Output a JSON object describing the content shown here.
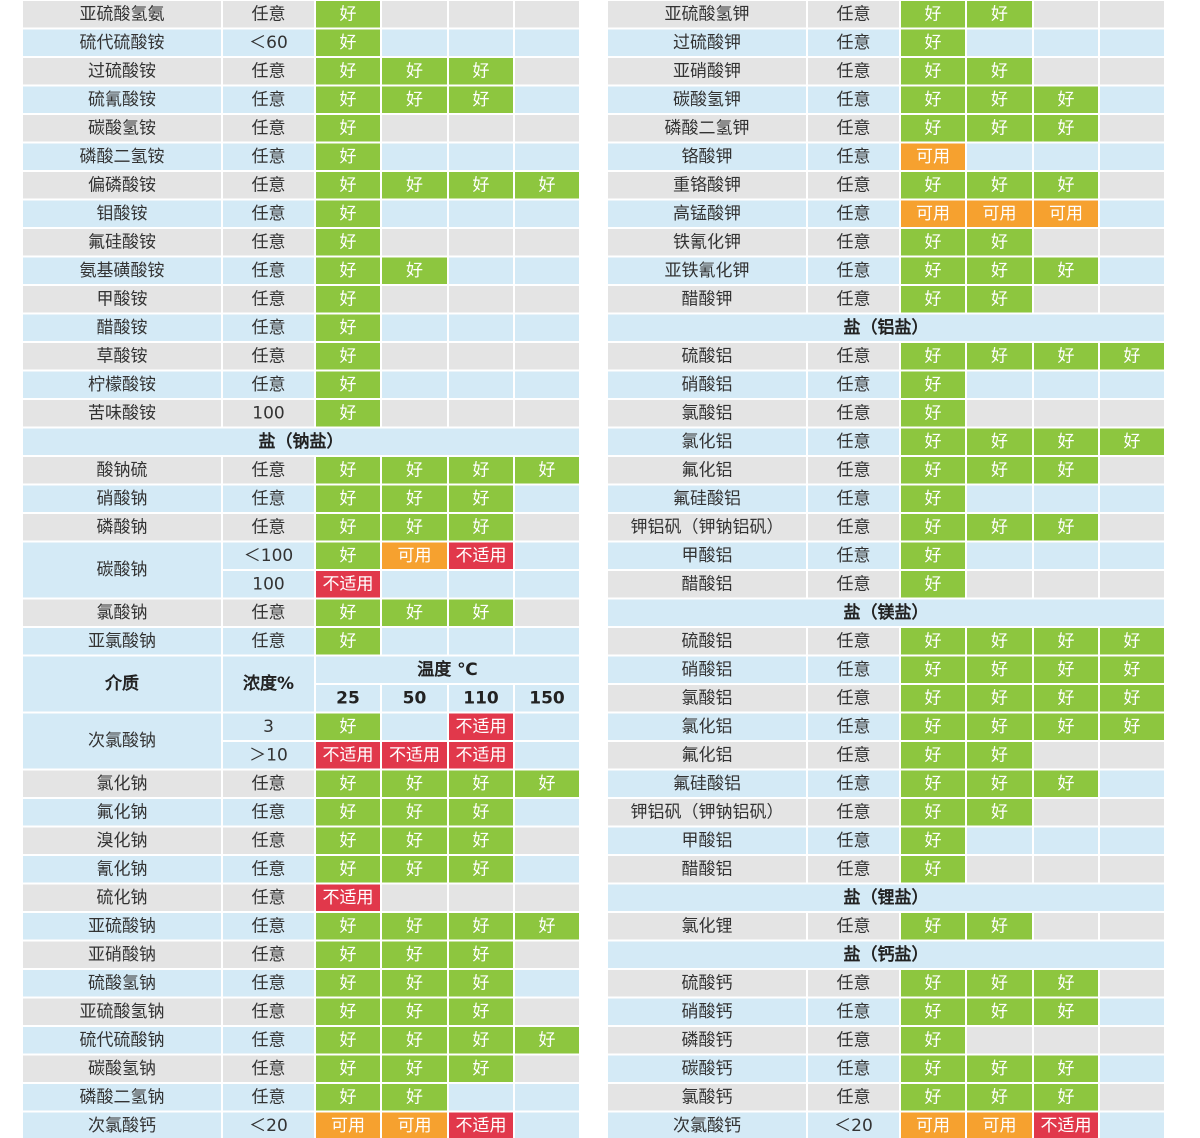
{
  "status_colors": {
    "好": "#8dc63f",
    "可用": "#f6a12f",
    "不适用": "#e1384b"
  },
  "row_colors": {
    "even": "#e4e4e4",
    "odd": "#d4eaf6"
  },
  "left": {
    "rows": [
      {
        "name": "亚硫酸氢氨",
        "conc": "任意",
        "cells": [
          "好"
        ]
      },
      {
        "name": "硫代硫酸铵",
        "conc": "＜60",
        "cells": [
          "好"
        ]
      },
      {
        "name": "过硫酸铵",
        "conc": "任意",
        "cells": [
          "好",
          "好",
          "好"
        ]
      },
      {
        "name": "硫氰酸铵",
        "conc": "任意",
        "cells": [
          "好",
          "好",
          "好"
        ]
      },
      {
        "name": "碳酸氢铵",
        "conc": "任意",
        "cells": [
          "好"
        ]
      },
      {
        "name": "磷酸二氢铵",
        "conc": "任意",
        "cells": [
          "好"
        ]
      },
      {
        "name": "偏磷酸铵",
        "conc": "任意",
        "cells": [
          "好",
          "好",
          "好",
          "好"
        ]
      },
      {
        "name": "钼酸铵",
        "conc": "任意",
        "cells": [
          "好"
        ]
      },
      {
        "name": "氟硅酸铵",
        "conc": "任意",
        "cells": [
          "好"
        ]
      },
      {
        "name": "氨基磺酸铵",
        "conc": "任意",
        "cells": [
          "好",
          "好"
        ]
      },
      {
        "name": "甲酸铵",
        "conc": "任意",
        "cells": [
          "好"
        ]
      },
      {
        "name": "醋酸铵",
        "conc": "任意",
        "cells": [
          "好"
        ]
      },
      {
        "name": "草酸铵",
        "conc": "任意",
        "cells": [
          "好"
        ]
      },
      {
        "name": "柠檬酸铵",
        "conc": "任意",
        "cells": [
          "好"
        ]
      },
      {
        "name": "苦味酸铵",
        "conc": "100",
        "cells": [
          "好"
        ]
      },
      {
        "section": "盐（钠盐）"
      },
      {
        "name": "酸钠硫",
        "conc": "任意",
        "cells": [
          "好",
          "好",
          "好",
          "好"
        ]
      },
      {
        "name": "硝酸钠",
        "conc": "任意",
        "cells": [
          "好",
          "好",
          "好"
        ]
      },
      {
        "name": "磷酸钠",
        "conc": "任意",
        "cells": [
          "好",
          "好",
          "好"
        ]
      },
      {
        "name": "碳酸钠",
        "rows": [
          {
            "conc": "＜100",
            "cells": [
              "好",
              "可用",
              "不适用"
            ]
          },
          {
            "conc": "100",
            "cells": [
              "不适用"
            ]
          }
        ]
      },
      {
        "name": "氯酸钠",
        "conc": "任意",
        "cells": [
          "好",
          "好",
          "好"
        ]
      },
      {
        "name": "亚氯酸钠",
        "conc": "任意",
        "cells": [
          "好"
        ]
      },
      {
        "header": {
          "medium": "介质",
          "conc": "浓度%",
          "temp": "温度 ℃",
          "temps": [
            25,
            50,
            110,
            150
          ]
        }
      },
      {
        "name": "次氯酸钠",
        "rows": [
          {
            "conc": "3",
            "cells": [
              "好",
              null,
              "不适用"
            ]
          },
          {
            "conc": "＞10",
            "cells": [
              "不适用",
              "不适用",
              "不适用"
            ]
          }
        ]
      },
      {
        "name": "氯化钠",
        "conc": "任意",
        "cells": [
          "好",
          "好",
          "好",
          "好"
        ]
      },
      {
        "name": "氟化钠",
        "conc": "任意",
        "cells": [
          "好",
          "好",
          "好"
        ]
      },
      {
        "name": "溴化钠",
        "conc": "任意",
        "cells": [
          "好",
          "好",
          "好"
        ]
      },
      {
        "name": "氰化钠",
        "conc": "任意",
        "cells": [
          "好",
          "好",
          "好"
        ]
      },
      {
        "name": "硫化钠",
        "conc": "任意",
        "cells": [
          "不适用"
        ]
      },
      {
        "name": "亚硫酸钠",
        "conc": "任意",
        "cells": [
          "好",
          "好",
          "好",
          "好"
        ]
      },
      {
        "name": "亚硝酸钠",
        "conc": "任意",
        "cells": [
          "好",
          "好",
          "好"
        ]
      },
      {
        "name": "硫酸氢钠",
        "conc": "任意",
        "cells": [
          "好",
          "好",
          "好"
        ]
      },
      {
        "name": "亚硫酸氢钠",
        "conc": "任意",
        "cells": [
          "好",
          "好",
          "好"
        ]
      },
      {
        "name": "硫代硫酸钠",
        "conc": "任意",
        "cells": [
          "好",
          "好",
          "好",
          "好"
        ]
      },
      {
        "name": "碳酸氢钠",
        "conc": "任意",
        "cells": [
          "好",
          "好",
          "好"
        ]
      },
      {
        "name": "磷酸二氢钠",
        "conc": "任意",
        "cells": [
          "好",
          "好"
        ]
      },
      {
        "name": "次氯酸钙",
        "rows": [
          {
            "conc": "＜20",
            "cells": [
              "可用",
              "可用",
              "不适用"
            ]
          }
        ]
      }
    ]
  },
  "right": {
    "rows": [
      {
        "name": "亚硫酸氢钾",
        "conc": "任意",
        "cells": [
          "好",
          "好"
        ]
      },
      {
        "name": "过硫酸钾",
        "conc": "任意",
        "cells": [
          "好"
        ]
      },
      {
        "name": "亚硝酸钾",
        "conc": "任意",
        "cells": [
          "好",
          "好"
        ]
      },
      {
        "name": "碳酸氢钾",
        "conc": "任意",
        "cells": [
          "好",
          "好",
          "好"
        ]
      },
      {
        "name": "磷酸二氢钾",
        "conc": "任意",
        "cells": [
          "好",
          "好",
          "好"
        ]
      },
      {
        "name": "铬酸钾",
        "conc": "任意",
        "cells": [
          "可用"
        ]
      },
      {
        "name": "重铬酸钾",
        "conc": "任意",
        "cells": [
          "好",
          "好",
          "好"
        ]
      },
      {
        "name": "高锰酸钾",
        "conc": "任意",
        "cells": [
          "可用",
          "可用",
          "可用"
        ]
      },
      {
        "name": "铁氰化钾",
        "conc": "任意",
        "cells": [
          "好",
          "好"
        ]
      },
      {
        "name": "亚铁氰化钾",
        "conc": "任意",
        "cells": [
          "好",
          "好",
          "好"
        ]
      },
      {
        "name": "醋酸钾",
        "conc": "任意",
        "cells": [
          "好",
          "好"
        ]
      },
      {
        "section": "盐（铝盐）"
      },
      {
        "name": "硫酸铝",
        "conc": "任意",
        "cells": [
          "好",
          "好",
          "好",
          "好"
        ]
      },
      {
        "name": "硝酸铝",
        "conc": "任意",
        "cells": [
          "好"
        ]
      },
      {
        "name": "氯酸铝",
        "conc": "任意",
        "cells": [
          "好"
        ]
      },
      {
        "name": "氯化铝",
        "conc": "任意",
        "cells": [
          "好",
          "好",
          "好",
          "好"
        ]
      },
      {
        "name": "氟化铝",
        "conc": "任意",
        "cells": [
          "好",
          "好",
          "好"
        ]
      },
      {
        "name": "氟硅酸铝",
        "conc": "任意",
        "cells": [
          "好"
        ]
      },
      {
        "name": "钾铝矾（钾钠铝矾）",
        "conc": "任意",
        "cells": [
          "好",
          "好",
          "好"
        ]
      },
      {
        "name": "甲酸铝",
        "conc": "任意",
        "cells": [
          "好"
        ]
      },
      {
        "name": "醋酸铝",
        "conc": "任意",
        "cells": [
          "好"
        ]
      },
      {
        "section": "盐（镁盐）"
      },
      {
        "name": "硫酸铝",
        "conc": "任意",
        "cells": [
          "好",
          "好",
          "好",
          "好"
        ]
      },
      {
        "name": "硝酸铝",
        "conc": "任意",
        "cells": [
          "好",
          "好",
          "好",
          "好"
        ]
      },
      {
        "name": "氯酸铝",
        "conc": "任意",
        "cells": [
          "好",
          "好",
          "好",
          "好"
        ]
      },
      {
        "name": "氯化铝",
        "conc": "任意",
        "cells": [
          "好",
          "好",
          "好",
          "好"
        ]
      },
      {
        "name": "氟化铝",
        "conc": "任意",
        "cells": [
          "好",
          "好"
        ]
      },
      {
        "name": "氟硅酸铝",
        "conc": "任意",
        "cells": [
          "好",
          "好",
          "好"
        ]
      },
      {
        "name": "钾铝矾（钾钠铝矾）",
        "conc": "任意",
        "cells": [
          "好",
          "好"
        ]
      },
      {
        "name": "甲酸铝",
        "conc": "任意",
        "cells": [
          "好"
        ]
      },
      {
        "name": "醋酸铝",
        "conc": "任意",
        "cells": [
          "好"
        ]
      },
      {
        "section": "盐（锂盐）"
      },
      {
        "name": "氯化锂",
        "conc": "任意",
        "cells": [
          "好",
          "好"
        ]
      },
      {
        "section": "盐（钙盐）"
      },
      {
        "name": "硫酸钙",
        "conc": "任意",
        "cells": [
          "好",
          "好",
          "好"
        ]
      },
      {
        "name": "硝酸钙",
        "conc": "任意",
        "cells": [
          "好",
          "好",
          "好"
        ]
      },
      {
        "name": "磷酸钙",
        "conc": "任意",
        "cells": [
          "好"
        ]
      },
      {
        "name": "碳酸钙",
        "conc": "任意",
        "cells": [
          "好",
          "好",
          "好"
        ]
      },
      {
        "name": "氯酸钙",
        "conc": "任意",
        "cells": [
          "好",
          "好",
          "好"
        ]
      },
      {
        "name": "次氯酸钙",
        "rows": [
          {
            "conc": "＜20",
            "cells": [
              "可用",
              "可用",
              "不适用"
            ]
          }
        ]
      }
    ]
  }
}
